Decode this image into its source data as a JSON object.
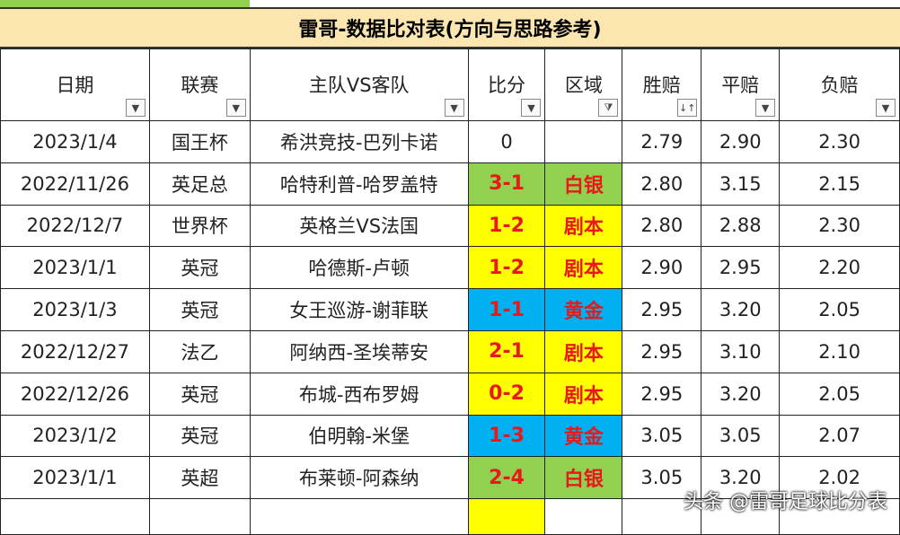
{
  "title": "雷哥-数据比对表(方向与思路参考)",
  "headers": [
    "日期",
    "联赛",
    "主队VS客队",
    "比分",
    "区域",
    "胜赔",
    "平赔",
    "负赔"
  ],
  "filter_icons": [
    "dropdown-arrow",
    "dropdown-arrow",
    "dropdown-arrow",
    "dropdown-arrow",
    "filter-active",
    "sort-asc",
    "dropdown-arrow",
    "dropdown-arrow"
  ],
  "colors": {
    "title_bg": "#fce6b0",
    "green": "#92d050",
    "yellow": "#ffff00",
    "blue": "#00b0f0",
    "red_text": "#e8191a"
  },
  "rows": [
    {
      "date": "2023/1/4",
      "league": "国王杯",
      "match": "希洪竞技-巴列卡诺",
      "score": "0",
      "zone": "",
      "win": "2.79",
      "draw": "2.90",
      "loss": "2.30",
      "color": "none"
    },
    {
      "date": "2022/11/26",
      "league": "英足总",
      "match": "哈特利普-哈罗盖特",
      "score": "3-1",
      "zone": "白银",
      "win": "2.80",
      "draw": "3.15",
      "loss": "2.15",
      "color": "green"
    },
    {
      "date": "2022/12/7",
      "league": "世界杯",
      "match": "英格兰VS法国",
      "score": "1-2",
      "zone": "剧本",
      "win": "2.80",
      "draw": "2.88",
      "loss": "2.30",
      "color": "yellow"
    },
    {
      "date": "2023/1/1",
      "league": "英冠",
      "match": "哈德斯-卢顿",
      "score": "1-2",
      "zone": "剧本",
      "win": "2.90",
      "draw": "2.95",
      "loss": "2.20",
      "color": "yellow"
    },
    {
      "date": "2023/1/3",
      "league": "英冠",
      "match": "女王巡游-谢菲联",
      "score": "1-1",
      "zone": "黄金",
      "win": "2.95",
      "draw": "3.20",
      "loss": "2.05",
      "color": "blue"
    },
    {
      "date": "2022/12/27",
      "league": "法乙",
      "match": "阿纳西-圣埃蒂安",
      "score": "2-1",
      "zone": "剧本",
      "win": "2.95",
      "draw": "3.10",
      "loss": "2.10",
      "color": "yellow"
    },
    {
      "date": "2022/12/26",
      "league": "英冠",
      "match": "布城-西布罗姆",
      "score": "0-2",
      "zone": "剧本",
      "win": "2.95",
      "draw": "3.20",
      "loss": "2.05",
      "color": "yellow"
    },
    {
      "date": "2023/1/2",
      "league": "英冠",
      "match": "伯明翰-米堡",
      "score": "1-3",
      "zone": "黄金",
      "win": "3.05",
      "draw": "3.05",
      "loss": "2.07",
      "color": "blue"
    },
    {
      "date": "2023/1/1",
      "league": "英超",
      "match": "布莱顿-阿森纳",
      "score": "2-4",
      "zone": "白银",
      "win": "3.05",
      "draw": "3.20",
      "loss": "2.02",
      "color": "green"
    }
  ],
  "watermark": "头条 @雷哥足球比分表"
}
